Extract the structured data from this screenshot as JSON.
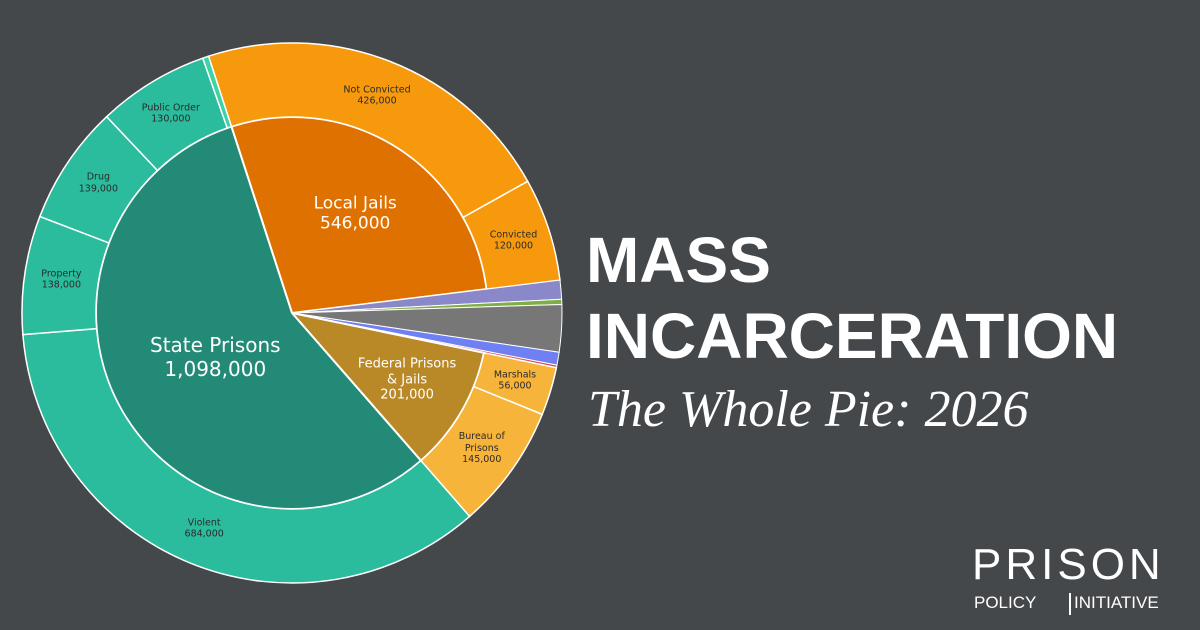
{
  "chart_data": {
    "type": "sunburst",
    "title": "MASS INCARCERATION",
    "subtitle": "The Whole Pie: 2026",
    "series": [
      {
        "name": "Local Jails",
        "value": 546000,
        "value_label": "546,000",
        "color": "#df7100",
        "children": [
          {
            "name": "Not Convicted",
            "value": 426000,
            "value_label": "426,000",
            "color": "#f7990c"
          },
          {
            "name": "Convicted",
            "value": 120000,
            "value_label": "120,000",
            "color": "#f7990c"
          }
        ]
      },
      {
        "name": null,
        "value": 22000,
        "color": "#8b88c9"
      },
      {
        "name": null,
        "value": 6000,
        "color": "#7eae45"
      },
      {
        "name": null,
        "value": 55000,
        "color": "#777777"
      },
      {
        "name": null,
        "value": 15000,
        "color": "#6f80f2"
      },
      {
        "name": null,
        "value": 3000,
        "color": "#e04848"
      },
      {
        "name": "Federal Prisons & Jails",
        "value": 201000,
        "value_label": "201,000",
        "color": "#b98927",
        "children": [
          {
            "name": "Marshals",
            "value": 56000,
            "value_label": "56,000",
            "color": "#f7b43a"
          },
          {
            "name": "Bureau of Prisons",
            "value": 145000,
            "value_label": "145,000",
            "color": "#f7b43a"
          }
        ]
      },
      {
        "name": "State Prisons",
        "value": 1098000,
        "value_label": "1,098,000",
        "color": "#228a76",
        "children": [
          {
            "name": "Violent",
            "value": 684000,
            "value_label": "684,000",
            "color": "#2bbb9d"
          },
          {
            "name": "Property",
            "value": 138000,
            "value_label": "138,000",
            "color": "#2bbb9d"
          },
          {
            "name": "Drug",
            "value": 139000,
            "value_label": "139,000",
            "color": "#2bbb9d"
          },
          {
            "name": "Public Order",
            "value": 130000,
            "value_label": "130,000",
            "color": "#2bbb9d"
          },
          {
            "name": null,
            "value": 7000,
            "color": "#3dd3a6"
          }
        ]
      }
    ]
  },
  "brand": {
    "name": "PRISON",
    "line2a": "POLICY",
    "line2b": "INITIATIVE"
  }
}
